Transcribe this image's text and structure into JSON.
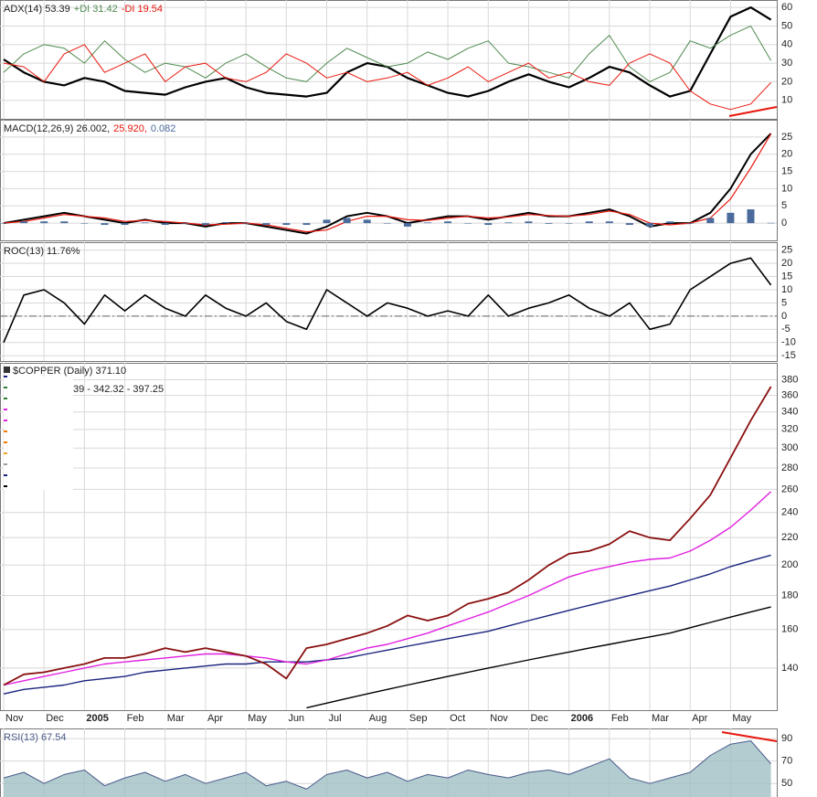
{
  "chart_data": [
    {
      "type": "line",
      "ylim": [
        0,
        64
      ],
      "yticks": [
        10,
        20,
        30,
        40,
        50,
        60
      ],
      "grid": true,
      "series": [
        {
          "name": "ADX(14) 53.39",
          "color": "#000000",
          "width": 2.2,
          "values": [
            32,
            25,
            20,
            18,
            22,
            20,
            15,
            14,
            13,
            17,
            20,
            22,
            17,
            14,
            13,
            12,
            14,
            25,
            30,
            28,
            22,
            18,
            14,
            12,
            15,
            20,
            24,
            20,
            17,
            22,
            28,
            25,
            18,
            12,
            15,
            35,
            55,
            60,
            53.39
          ]
        },
        {
          "name": "+DI 31.42",
          "color": "#4f8a4f",
          "width": 1,
          "values": [
            25,
            35,
            40,
            38,
            30,
            42,
            32,
            25,
            30,
            28,
            22,
            30,
            35,
            28,
            22,
            20,
            30,
            38,
            33,
            28,
            30,
            36,
            32,
            38,
            42,
            30,
            28,
            25,
            22,
            35,
            45,
            28,
            20,
            25,
            42,
            38,
            45,
            50,
            31.42
          ]
        },
        {
          "name": "-DI 19.54",
          "color": "#e8160c",
          "width": 1,
          "values": [
            30,
            28,
            20,
            35,
            40,
            25,
            30,
            35,
            20,
            28,
            30,
            22,
            20,
            25,
            35,
            30,
            22,
            25,
            20,
            22,
            25,
            18,
            22,
            28,
            20,
            25,
            30,
            22,
            25,
            20,
            18,
            30,
            35,
            30,
            15,
            8,
            5,
            8,
            19.54
          ]
        }
      ]
    },
    {
      "type": "line",
      "ylim": [
        -5,
        30
      ],
      "yticks": [
        0,
        5,
        10,
        15,
        20,
        25
      ],
      "grid": true,
      "series": [
        {
          "name": "MACD(12,26,9) 26.002,",
          "color": "#000000",
          "width": 2,
          "values": [
            0,
            1,
            2,
            3,
            2,
            1,
            0,
            1,
            0,
            0,
            -1,
            0,
            0,
            -1,
            -2,
            -3,
            -1,
            2,
            3,
            2,
            0,
            1,
            2,
            2,
            1,
            2,
            3,
            2,
            2,
            3,
            4,
            2,
            -1,
            0,
            0,
            3,
            10,
            20,
            26.002
          ]
        },
        {
          "name": "25.920,",
          "color": "#e8160c",
          "width": 1.2,
          "values": [
            0,
            0.5,
            1.5,
            2.5,
            2,
            1.5,
            0.5,
            0.8,
            0.5,
            0,
            -0.5,
            -0.3,
            0,
            -0.5,
            -1.5,
            -2.5,
            -2,
            0.5,
            2,
            2,
            1,
            0.8,
            1.5,
            2,
            1.5,
            1.8,
            2.5,
            2.2,
            2,
            2.5,
            3.5,
            2.5,
            0,
            -0.5,
            0,
            1.5,
            7,
            16,
            25.92
          ]
        },
        {
          "name": "0.082",
          "type": "bar",
          "color": "#4a6b9c",
          "values": [
            0,
            0.5,
            0.5,
            0.5,
            0,
            -0.5,
            -0.5,
            0.2,
            -0.5,
            0,
            -0.5,
            0.3,
            0,
            -0.5,
            -0.5,
            -0.5,
            1,
            1.5,
            1,
            0,
            -1,
            0.2,
            0.5,
            0,
            -0.5,
            0.2,
            0.5,
            -0.2,
            0,
            0.5,
            0.5,
            -0.5,
            -1,
            0.5,
            0,
            1.5,
            3,
            4,
            0.082
          ]
        }
      ]
    },
    {
      "type": "line",
      "ylim": [
        -17,
        28
      ],
      "yticks": [
        -15,
        -10,
        -5,
        0,
        5,
        10,
        15,
        20,
        25
      ],
      "grid": true,
      "zero_line": true,
      "series": [
        {
          "name": "ROC(13) 11.76%",
          "color": "#000000",
          "width": 1.6,
          "values": [
            -10,
            8,
            10,
            5,
            -3,
            8,
            2,
            8,
            3,
            0,
            8,
            3,
            0,
            5,
            -2,
            -5,
            10,
            5,
            0,
            5,
            3,
            0,
            2,
            0,
            8,
            0,
            3,
            5,
            8,
            3,
            0,
            5,
            -5,
            -3,
            10,
            15,
            20,
            22,
            11.76
          ]
        }
      ]
    },
    {
      "type": "line",
      "title": "$COPPER (Daily) 371.10",
      "subtitle": "39 - 342.32 - 397.25",
      "yscale": "log",
      "ylim": [
        121,
        403
      ],
      "yticks": [
        140,
        160,
        180,
        200,
        220,
        240,
        260,
        280,
        300,
        320,
        340,
        360,
        380
      ],
      "grid": true,
      "xlim": [
        0,
        19.1
      ],
      "xticks": [
        {
          "value": 0,
          "label": "Nov"
        },
        {
          "value": 1,
          "label": "Dec"
        },
        {
          "value": 2,
          "label": "2005"
        },
        {
          "value": 3,
          "label": "Feb"
        },
        {
          "value": 4,
          "label": "Mar"
        },
        {
          "value": 5,
          "label": "Apr"
        },
        {
          "value": 6,
          "label": "May"
        },
        {
          "value": 7,
          "label": "Jun"
        },
        {
          "value": 8,
          "label": "Jul"
        },
        {
          "value": 9,
          "label": "Aug"
        },
        {
          "value": 10,
          "label": "Sep"
        },
        {
          "value": 11,
          "label": "Oct"
        },
        {
          "value": 12,
          "label": "Nov"
        },
        {
          "value": 13,
          "label": "Dec"
        },
        {
          "value": 14,
          "label": "2006"
        },
        {
          "value": 15,
          "label": "Feb"
        },
        {
          "value": 16,
          "label": "Mar"
        },
        {
          "value": 17,
          "label": "Apr"
        },
        {
          "value": 18,
          "label": "May"
        }
      ],
      "x": [
        0,
        0.5,
        1,
        1.5,
        2,
        2.5,
        3,
        3.5,
        4,
        4.5,
        5,
        5.5,
        6,
        6.5,
        7,
        7.5,
        8,
        8.5,
        9,
        9.5,
        10,
        10.5,
        11,
        11.5,
        12,
        12.5,
        13,
        13.5,
        14,
        14.5,
        15,
        15.5,
        16,
        16.5,
        17,
        17.5,
        18,
        18.5,
        19
      ],
      "series": [
        {
          "color": "#000000",
          "width": 1.4,
          "values": [
            null,
            null,
            null,
            null,
            null,
            null,
            null,
            null,
            null,
            null,
            null,
            null,
            null,
            null,
            null,
            122,
            124,
            126,
            128,
            130,
            132,
            134,
            136,
            138,
            140,
            142,
            144,
            146,
            148,
            150,
            152,
            154,
            156,
            158,
            161,
            164,
            167,
            170,
            173
          ]
        },
        {
          "color": "#1a237e",
          "width": 1.4,
          "values": [
            128,
            130,
            131,
            132,
            134,
            135,
            136,
            138,
            139,
            140,
            141,
            142,
            142,
            143,
            143,
            143,
            144,
            145,
            147,
            149,
            151,
            153,
            155,
            157,
            159,
            162,
            165,
            168,
            171,
            174,
            177,
            180,
            183,
            186,
            190,
            194,
            199,
            203,
            207
          ]
        },
        {
          "color": "#e020e0",
          "width": 1.4,
          "values": [
            132,
            134,
            136,
            138,
            140,
            142,
            143,
            144,
            145,
            146,
            147,
            147,
            146,
            145,
            143,
            142,
            144,
            147,
            150,
            152,
            155,
            158,
            162,
            166,
            170,
            175,
            180,
            186,
            192,
            196,
            199,
            202,
            204,
            205,
            210,
            218,
            228,
            242,
            258
          ]
        },
        {
          "color": "#8a1010",
          "width": 1.8,
          "values": [
            132,
            137,
            138,
            140,
            142,
            145,
            145,
            147,
            150,
            148,
            150,
            148,
            146,
            142,
            135,
            150,
            152,
            155,
            158,
            162,
            168,
            165,
            168,
            175,
            178,
            182,
            190,
            200,
            208,
            210,
            215,
            225,
            220,
            218,
            235,
            255,
            290,
            330,
            371.1
          ]
        }
      ]
    },
    {
      "type": "line",
      "ylim": [
        38,
        99
      ],
      "yticks": [
        50,
        70,
        90
      ],
      "grid": true,
      "series": [
        {
          "name": "RSI(13) 67.54",
          "color": "#4a5a8a",
          "fill": "#9fbfc4",
          "width": 1,
          "values": [
            55,
            60,
            50,
            58,
            62,
            48,
            55,
            60,
            52,
            58,
            50,
            55,
            60,
            48,
            52,
            45,
            58,
            62,
            55,
            60,
            52,
            58,
            55,
            62,
            58,
            55,
            60,
            62,
            58,
            65,
            72,
            55,
            50,
            55,
            60,
            75,
            85,
            88,
            67.54
          ]
        }
      ]
    }
  ]
}
